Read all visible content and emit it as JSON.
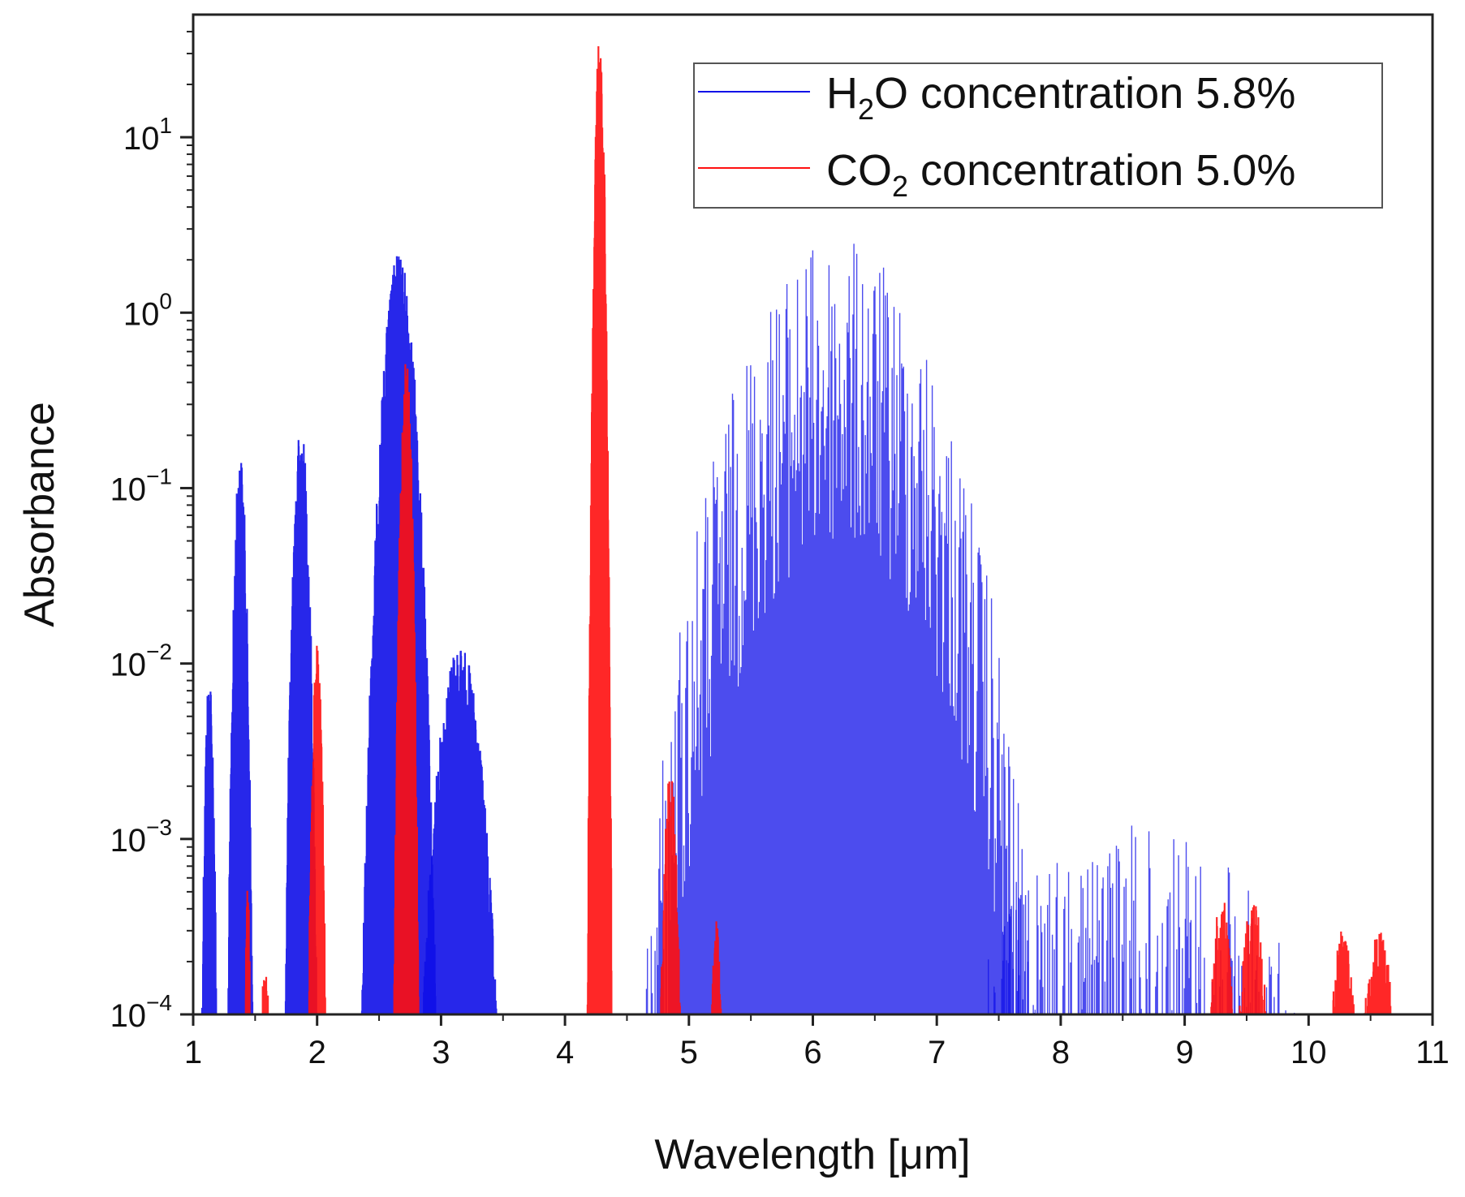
{
  "chart_data": {
    "type": "line",
    "title": "",
    "xlabel": "Wavelength [μm]",
    "ylabel": "Absorbance",
    "xlim": [
      1,
      11
    ],
    "ylim": [
      0.0001,
      50
    ],
    "yscale": "log",
    "x_ticks": [
      "1",
      "2",
      "3",
      "4",
      "5",
      "6",
      "7",
      "8",
      "9",
      "10",
      "11"
    ],
    "y_ticks": [
      {
        "base": "10",
        "exp": "1"
      },
      {
        "base": "10",
        "exp": "0"
      },
      {
        "base": "10",
        "exp": "−1"
      },
      {
        "base": "10",
        "exp": "−2"
      },
      {
        "base": "10",
        "exp": "−3"
      },
      {
        "base": "10",
        "exp": "−4"
      }
    ],
    "legend_position": "top-right",
    "series": [
      {
        "name": "H2O concentration 5.8%",
        "legend": {
          "pre": "H",
          "sub": "2",
          "post": "O concentration 5.8%"
        },
        "color": "#1010e8",
        "bands": [
          {
            "center": 1.13,
            "halfwidth": 0.06,
            "peak": 0.0095
          },
          {
            "center": 1.38,
            "halfwidth": 0.1,
            "peak": 0.16
          },
          {
            "center": 1.87,
            "halfwidth": 0.13,
            "peak": 0.23
          },
          {
            "center": 2.66,
            "halfwidth": 0.3,
            "peak": 2.2
          },
          {
            "center": 3.15,
            "halfwidth": 0.3,
            "peak": 0.013
          },
          {
            "center": 6.2,
            "halfwidth": 1.55,
            "peak": 2.6
          },
          {
            "center": 8.6,
            "halfwidth": 1.3,
            "peak": 0.0012
          }
        ]
      },
      {
        "name": "CO2 concentration 5.0%",
        "legend": {
          "pre": "CO",
          "sub": "2",
          "post": " concentration 5.0%"
        },
        "color": "#ff1010",
        "bands": [
          {
            "center": 1.44,
            "halfwidth": 0.02,
            "peak": 0.0006
          },
          {
            "center": 1.58,
            "halfwidth": 0.03,
            "peak": 0.00018
          },
          {
            "center": 2.0,
            "halfwidth": 0.07,
            "peak": 0.013
          },
          {
            "center": 2.72,
            "halfwidth": 0.1,
            "peak": 0.6
          },
          {
            "center": 4.28,
            "halfwidth": 0.1,
            "peak": 38
          },
          {
            "center": 4.85,
            "halfwidth": 0.08,
            "peak": 0.0024
          },
          {
            "center": 5.22,
            "halfwidth": 0.04,
            "peak": 0.00035
          },
          {
            "center": 9.3,
            "halfwidth": 0.09,
            "peak": 0.00048
          },
          {
            "center": 9.55,
            "halfwidth": 0.11,
            "peak": 0.00045
          },
          {
            "center": 10.28,
            "halfwidth": 0.09,
            "peak": 0.00031
          },
          {
            "center": 10.57,
            "halfwidth": 0.12,
            "peak": 0.0003
          }
        ]
      }
    ]
  }
}
